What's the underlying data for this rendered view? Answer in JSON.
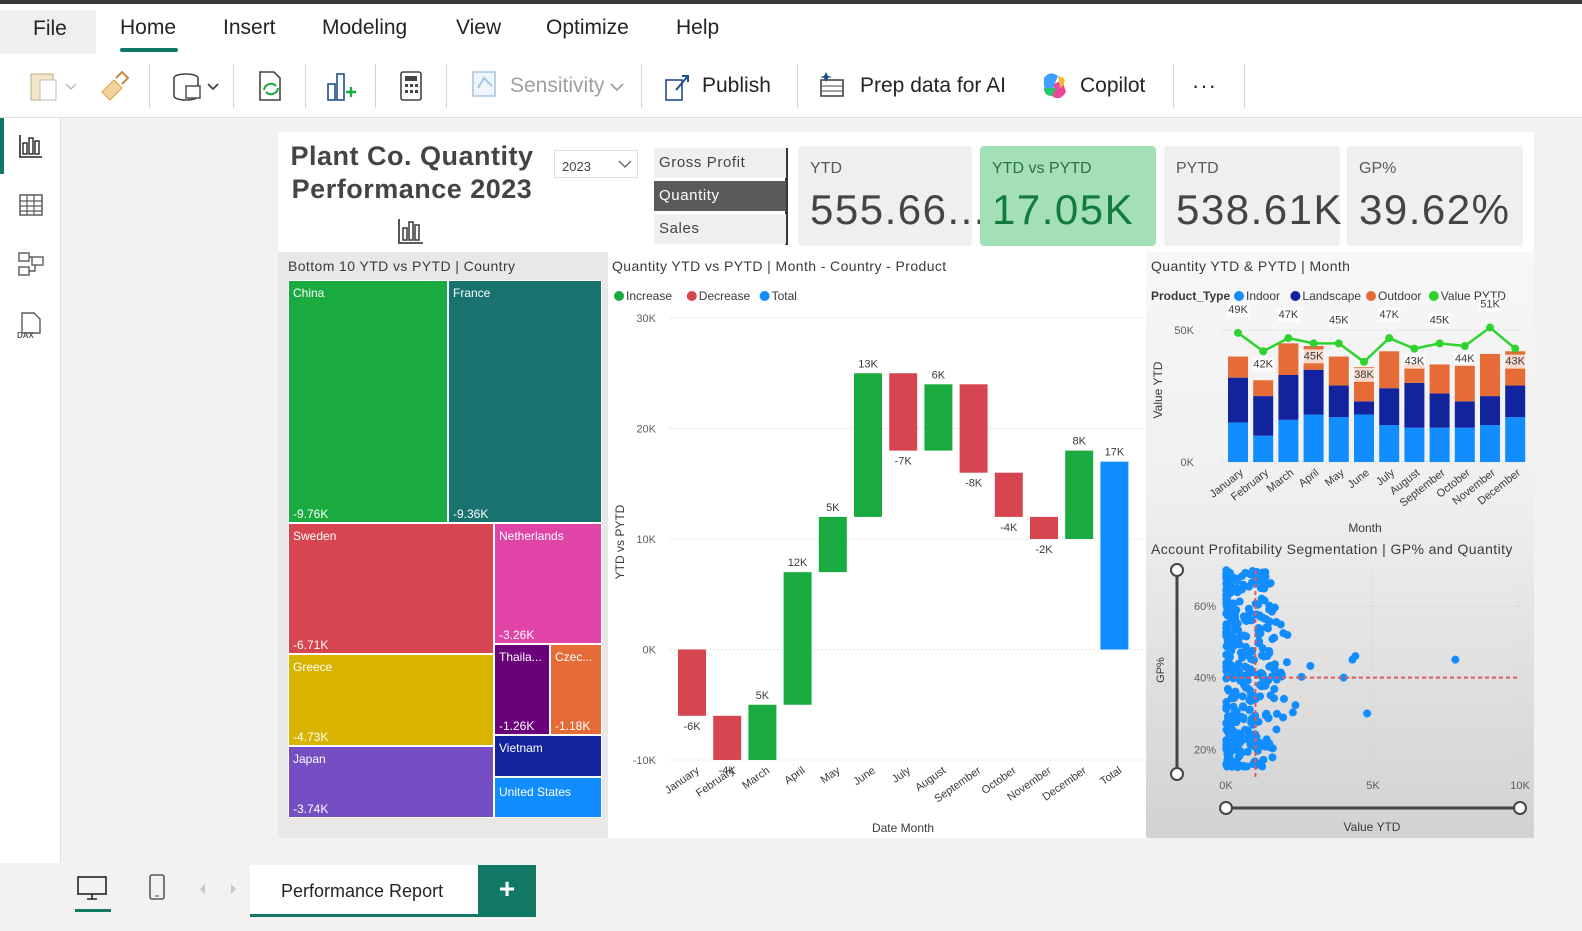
{
  "menu": {
    "file": "File",
    "home": "Home",
    "insert": "Insert",
    "modeling": "Modeling",
    "view": "View",
    "optimize": "Optimize",
    "help": "Help"
  },
  "ribbon": {
    "sensitivity": "Sensitivity",
    "publish": "Publish",
    "prep": "Prep data for AI",
    "copilot": "Copilot",
    "more": "···"
  },
  "report": {
    "title_line1": "Plant Co. Quantity",
    "title_line2": "Performance 2023",
    "year": "2023"
  },
  "slicer": {
    "items": [
      "Gross Profit",
      "Quantity",
      "Sales"
    ],
    "selected": "Quantity"
  },
  "kpis": [
    {
      "label": "YTD",
      "value": "555.66..."
    },
    {
      "label": "YTD vs PYTD",
      "value": "17.05K"
    },
    {
      "label": "PYTD",
      "value": "538.61K"
    },
    {
      "label": "GP%",
      "value": "39.62%"
    }
  ],
  "treemap": {
    "title": "Bottom 10 YTD vs PYTD | Country",
    "tiles": [
      {
        "name": "China",
        "value": "-9.76K",
        "color": "#1aab40"
      },
      {
        "name": "France",
        "value": "-9.36K",
        "color": "#18736f"
      },
      {
        "name": "Sweden",
        "value": "-6.71K",
        "color": "#d64550"
      },
      {
        "name": "Netherlands",
        "value": "-3.26K",
        "color": "#e044a7"
      },
      {
        "name": "Greece",
        "value": "-4.73K",
        "color": "#d8b300"
      },
      {
        "name": "Thaila...",
        "value": "-1.26K",
        "color": "#6b007b"
      },
      {
        "name": "Czec...",
        "value": "-1.18K",
        "color": "#e66c37"
      },
      {
        "name": "Japan",
        "value": "-3.74K",
        "color": "#744ec2"
      },
      {
        "name": "Vietnam",
        "value": "",
        "color": "#12239e"
      },
      {
        "name": "United States",
        "value": "",
        "color": "#118dff"
      }
    ]
  },
  "waterfall": {
    "title": "Quantity YTD vs PYTD | Month - Country - Product",
    "legend": [
      "Increase",
      "Decrease",
      "Total"
    ],
    "colors": {
      "Increase": "#1aab40",
      "Decrease": "#d64550",
      "Total": "#118dff"
    }
  },
  "combo": {
    "title": "Quantity YTD & PYTD | Month",
    "legend_title": "Product_Type",
    "legend": [
      "Indoor",
      "Landscape",
      "Outdoor",
      "Value PYTD"
    ],
    "colors": {
      "Indoor": "#118dff",
      "Landscape": "#12239e",
      "Outdoor": "#e66c37",
      "Value PYTD": "#2fd32f"
    }
  },
  "scatter": {
    "title": "Account Profitability Segmentation | GP% and Quantity"
  },
  "chart_data": [
    {
      "type": "bar",
      "subtype": "waterfall",
      "title": "Quantity YTD vs PYTD | Month - Country - Product",
      "xlabel": "Date Month",
      "ylabel": "YTD vs PYTD",
      "ylim": [
        -10000,
        30000
      ],
      "yticks": [
        {
          "v": -10000,
          "t": "-10K"
        },
        {
          "v": 0,
          "t": "0K"
        },
        {
          "v": 10000,
          "t": "10K"
        },
        {
          "v": 20000,
          "t": "20K"
        },
        {
          "v": 30000,
          "t": "30K"
        }
      ],
      "categories": [
        "January",
        "February",
        "March",
        "April",
        "May",
        "June",
        "July",
        "August",
        "September",
        "October",
        "November",
        "December",
        "Total"
      ],
      "values": [
        -6000,
        -4000,
        5000,
        12000,
        5000,
        13000,
        -7000,
        6000,
        -8000,
        -4000,
        -2000,
        8000,
        17000
      ],
      "labels": [
        "-6K",
        "-4K",
        "5K",
        "12K",
        "5K",
        "13K",
        "-7K",
        "6K",
        "-8K",
        "-4K",
        "-2K",
        "8K",
        "17K"
      ],
      "legend": [
        "Increase",
        "Decrease",
        "Total"
      ],
      "legend_position": "top-left",
      "grid": true
    },
    {
      "type": "bar",
      "subtype": "stacked-bar-with-line",
      "title": "Quantity YTD & PYTD | Month",
      "xlabel": "Month",
      "ylabel": "Value YTD",
      "ylim": [
        0,
        55000
      ],
      "yticks": [
        {
          "v": 0,
          "t": "0K"
        },
        {
          "v": 50000,
          "t": "50K"
        }
      ],
      "categories": [
        "January",
        "February",
        "March",
        "April",
        "May",
        "June",
        "July",
        "August",
        "September",
        "October",
        "November",
        "December"
      ],
      "series": [
        {
          "name": "Indoor",
          "values": [
            15000,
            10000,
            16000,
            18000,
            17000,
            18000,
            14000,
            13000,
            13000,
            13000,
            14000,
            17000
          ]
        },
        {
          "name": "Landscape",
          "values": [
            17000,
            15000,
            17000,
            17000,
            12000,
            5000,
            14000,
            17000,
            13000,
            10000,
            11000,
            12000
          ]
        },
        {
          "name": "Outdoor",
          "values": [
            8000,
            6000,
            12000,
            9000,
            11000,
            13000,
            14000,
            7000,
            11000,
            14000,
            16000,
            13000
          ]
        },
        {
          "name": "Value PYTD",
          "values": [
            49000,
            42000,
            47000,
            45000,
            45000,
            38000,
            47000,
            43000,
            45000,
            44000,
            51000,
            43000
          ]
        }
      ],
      "bar_labels": [
        "49K",
        "42K",
        "47K",
        "45K",
        "45K",
        "38K",
        "47K",
        "43K",
        "45K",
        "44K",
        "51K",
        "43K"
      ],
      "legend": [
        "Indoor",
        "Landscape",
        "Outdoor",
        "Value PYTD"
      ],
      "legend_title": "Product_Type",
      "legend_position": "top-left"
    },
    {
      "type": "scatter",
      "title": "Account Profitability Segmentation | GP% and Quantity",
      "xlabel": "Value YTD",
      "ylabel": "GP%",
      "xlim": [
        0,
        10000
      ],
      "ylim": [
        0.12,
        0.7
      ],
      "xticks": [
        {
          "v": 0,
          "t": "0K"
        },
        {
          "v": 5000,
          "t": "5K"
        },
        {
          "v": 10000,
          "t": "10K"
        }
      ],
      "yticks": [
        {
          "v": 0.2,
          "t": "20%"
        },
        {
          "v": 0.4,
          "t": "40%"
        },
        {
          "v": 0.6,
          "t": "60%"
        }
      ],
      "reference_lines": {
        "x": 1000,
        "y": 0.4
      },
      "outliers": [
        [
          4300,
          0.45
        ],
        [
          4400,
          0.46
        ],
        [
          4000,
          0.4
        ],
        [
          7800,
          0.45
        ],
        [
          4800,
          0.3
        ]
      ]
    }
  ],
  "bottom": {
    "tab": "Performance Report",
    "add": "+"
  }
}
